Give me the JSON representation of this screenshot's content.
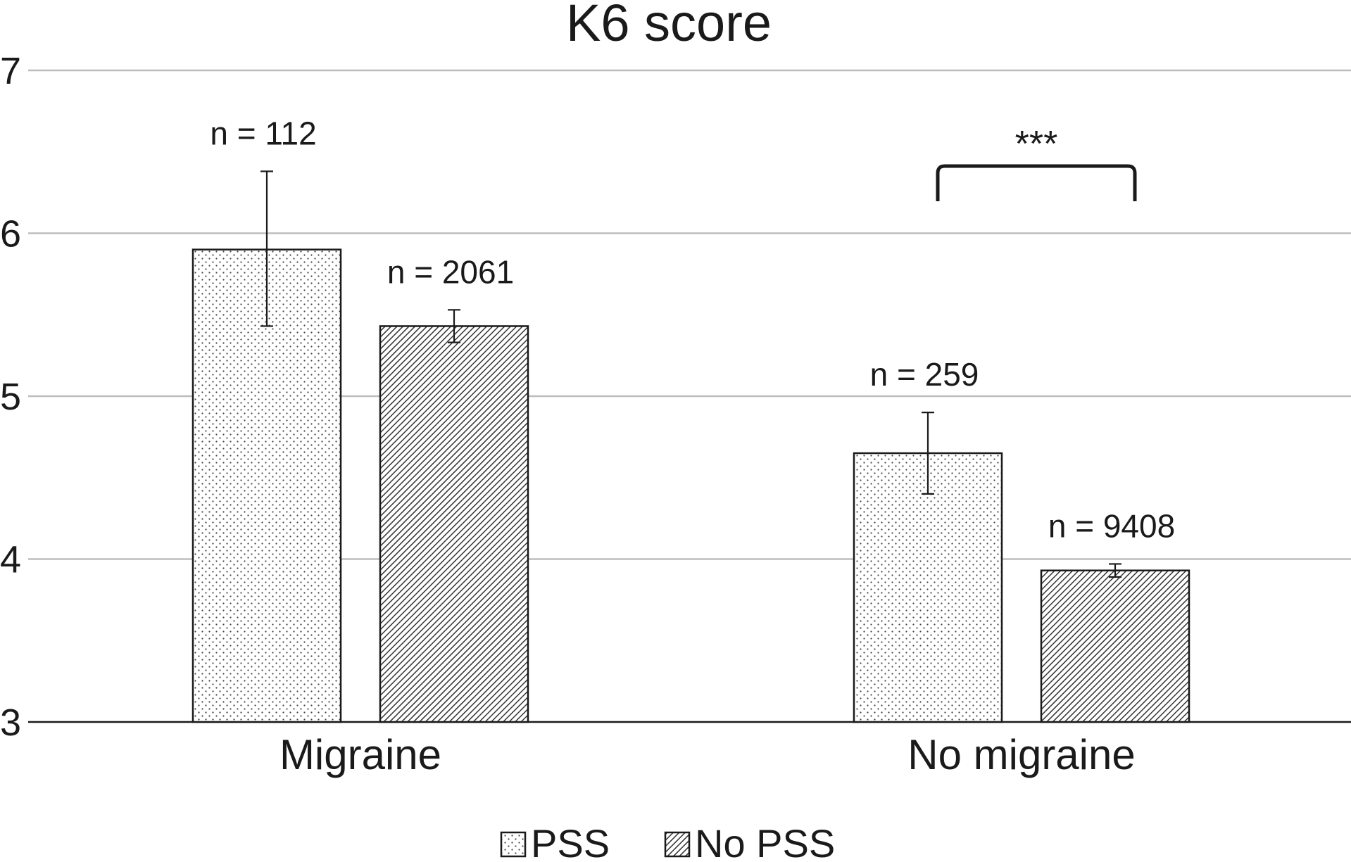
{
  "chart_data": {
    "type": "bar",
    "title": "K6 score",
    "categories": [
      "Migraine",
      "No migraine"
    ],
    "ylim": [
      3,
      7
    ],
    "yticks": [
      3,
      4,
      5,
      6,
      7
    ],
    "grid": true,
    "legend_position": "bottom-center",
    "series": [
      {
        "name": "PSS",
        "pattern": "dots",
        "values": [
          5.9,
          4.65
        ],
        "error_low": [
          5.43,
          4.4
        ],
        "error_high": [
          6.38,
          4.9
        ],
        "n_labels": [
          "n = 112",
          "n = 259"
        ]
      },
      {
        "name": "No PSS",
        "pattern": "hatch",
        "values": [
          5.43,
          3.93
        ],
        "error_low": [
          5.33,
          3.89
        ],
        "error_high": [
          5.53,
          3.97
        ],
        "n_labels": [
          "n = 2061",
          "n = 9408"
        ]
      }
    ],
    "annotations": [
      {
        "text": "***",
        "category": "No migraine"
      }
    ],
    "colors": {
      "bar_stroke": "#1a1a1a",
      "grid": "#bdbdbd",
      "fill": "#ffffff"
    }
  }
}
